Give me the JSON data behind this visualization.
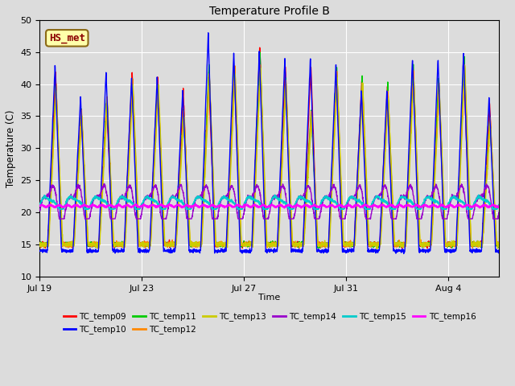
{
  "title": "Temperature Profile B",
  "xlabel": "Time",
  "ylabel": "Temperature (C)",
  "ylim": [
    10,
    50
  ],
  "n_days": 18,
  "background_color": "#dcdcdc",
  "series": {
    "TC_temp09": {
      "color": "#ff0000",
      "linewidth": 1.0,
      "zorder": 3
    },
    "TC_temp10": {
      "color": "#0000ff",
      "linewidth": 1.0,
      "zorder": 4
    },
    "TC_temp11": {
      "color": "#00cc00",
      "linewidth": 1.0,
      "zorder": 3
    },
    "TC_temp12": {
      "color": "#ff8800",
      "linewidth": 1.0,
      "zorder": 3
    },
    "TC_temp13": {
      "color": "#cccc00",
      "linewidth": 1.0,
      "zorder": 3
    },
    "TC_temp14": {
      "color": "#9900cc",
      "linewidth": 1.0,
      "zorder": 5
    },
    "TC_temp15": {
      "color": "#00cccc",
      "linewidth": 1.2,
      "zorder": 6
    },
    "TC_temp16": {
      "color": "#ff00ff",
      "linewidth": 1.5,
      "zorder": 7
    }
  },
  "legend_order": [
    "TC_temp09",
    "TC_temp10",
    "TC_temp11",
    "TC_temp12",
    "TC_temp13",
    "TC_temp14",
    "TC_temp15",
    "TC_temp16"
  ],
  "xtick_labels": [
    "Jul 19",
    "Jul 23",
    "Jul 27",
    "Jul 31",
    "Aug 4"
  ],
  "xtick_positions": [
    0,
    4,
    8,
    12,
    16
  ],
  "annotation": {
    "text": "HS_met",
    "fontsize": 9,
    "text_color": "#8b0000",
    "bg_color": "#ffffaa",
    "border_color": "#8b6914"
  }
}
